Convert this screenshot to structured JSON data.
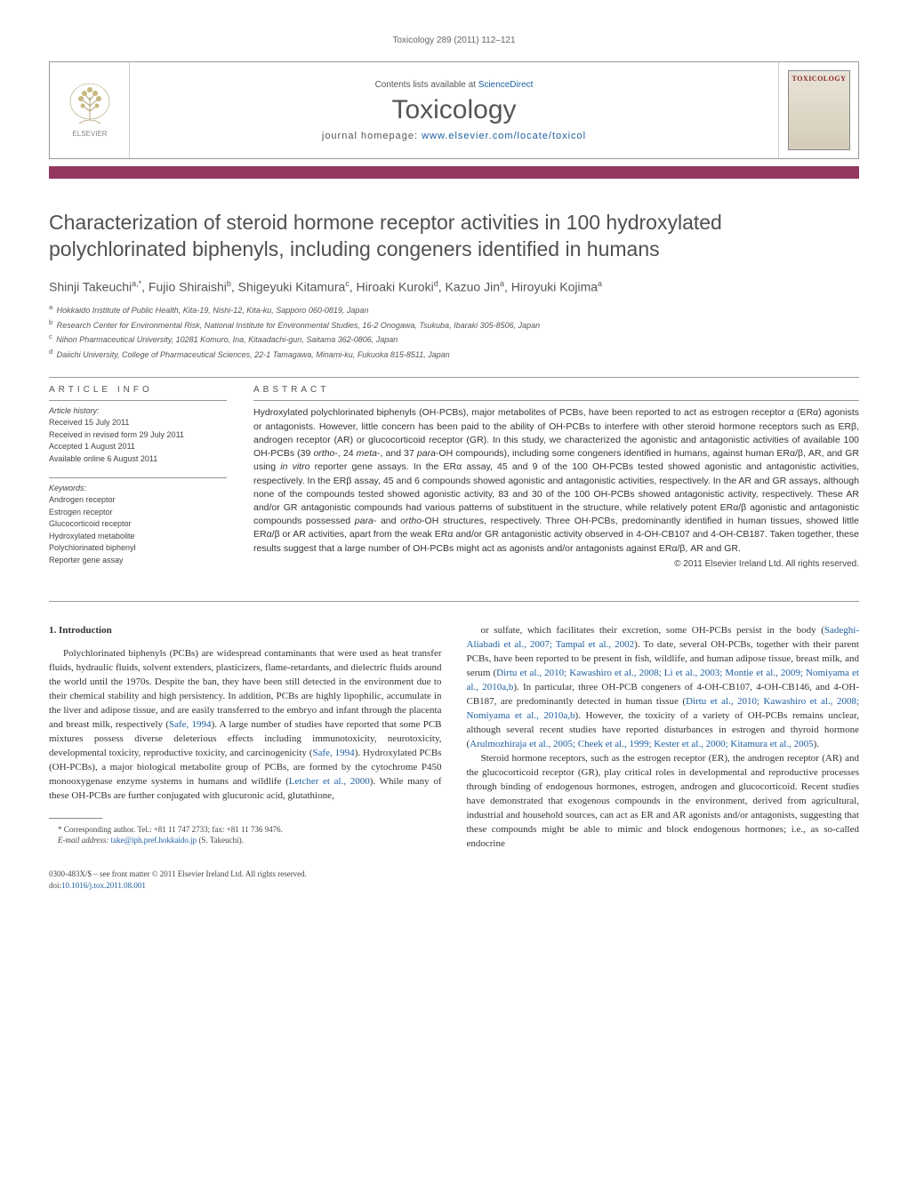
{
  "runningHeader": "Toxicology 289 (2011) 112–121",
  "masthead": {
    "contentsPrefix": "Contents lists available at ",
    "contentsLink": "ScienceDirect",
    "journalName": "Toxicology",
    "homepagePrefix": "journal homepage: ",
    "homepageLink": "www.elsevier.com/locate/toxicol",
    "coverTitle": "TOXICOLOGY",
    "publisherName": "ELSEVIER"
  },
  "colors": {
    "accentBar": "#93385f",
    "link": "#2060a0",
    "titleText": "#505050",
    "bodyText": "#333333",
    "metaText": "#555555",
    "border": "#999999",
    "coverAccent": "#8a2020"
  },
  "title": "Characterization of steroid hormone receptor activities in 100 hydroxylated polychlorinated biphenyls, including congeners identified in humans",
  "authorsHtml": "Shinji Takeuchi<sup>a,*</sup>, Fujio Shiraishi<sup>b</sup>, Shigeyuki Kitamura<sup>c</sup>, Hiroaki Kuroki<sup>d</sup>, Kazuo Jin<sup>a</sup>, Hiroyuki Kojima<sup>a</sup>",
  "affiliations": [
    {
      "sup": "a",
      "text": "Hokkaido Institute of Public Health, Kita-19, Nishi-12, Kita-ku, Sapporo 060-0819, Japan"
    },
    {
      "sup": "b",
      "text": "Research Center for Environmental Risk, National Institute for Environmental Studies, 16-2 Onogawa, Tsukuba, Ibaraki 305-8506, Japan"
    },
    {
      "sup": "c",
      "text": "Nihon Pharmaceutical University, 10281 Komuro, Ina, Kitaadachi-gun, Saitama 362-0806, Japan"
    },
    {
      "sup": "d",
      "text": "Daiichi University, College of Pharmaceutical Sciences, 22-1 Tamagawa, Minami-ku, Fukuoka 815-8511, Japan"
    }
  ],
  "articleInfo": {
    "label": "article info",
    "historyHeading": "Article history:",
    "history": [
      "Received 15 July 2011",
      "Received in revised form 29 July 2011",
      "Accepted 1 August 2011",
      "Available online 6 August 2011"
    ],
    "keywordsHeading": "Keywords:",
    "keywords": [
      "Androgen receptor",
      "Estrogen receptor",
      "Glucocorticoid receptor",
      "Hydroxylated metabolite",
      "Polychlorinated biphenyl",
      "Reporter gene assay"
    ]
  },
  "abstract": {
    "label": "abstract",
    "text": "Hydroxylated polychlorinated biphenyls (OH-PCBs), major metabolites of PCBs, have been reported to act as estrogen receptor α (ERα) agonists or antagonists. However, little concern has been paid to the ability of OH-PCBs to interfere with other steroid hormone receptors such as ERβ, androgen receptor (AR) or glucocorticoid receptor (GR). In this study, we characterized the agonistic and antagonistic activities of available 100 OH-PCBs (39 <em>ortho</em>-, 24 <em>meta</em>-, and 37 <em>para</em>-OH compounds), including some congeners identified in humans, against human ERα/β, AR, and GR using <em>in vitro</em> reporter gene assays. In the ERα assay, 45 and 9 of the 100 OH-PCBs tested showed agonistic and antagonistic activities, respectively. In the ERβ assay, 45 and 6 compounds showed agonistic and antagonistic activities, respectively. In the AR and GR assays, although none of the compounds tested showed agonistic activity, 83 and 30 of the 100 OH-PCBs showed antagonistic activity, respectively. These AR and/or GR antagonistic compounds had various patterns of substituent in the structure, while relatively potent ERα/β agonistic and antagonistic compounds possessed <em>para</em>- and <em>ortho</em>-OH structures, respectively. Three OH-PCBs, predominantly identified in human tissues, showed little ERα/β or AR activities, apart from the weak ERα and/or GR antagonistic activity observed in 4-OH-CB107 and 4-OH-CB187. Taken together, these results suggest that a large number of OH-PCBs might act as agonists and/or antagonists against ERα/β, AR and GR.",
    "copyright": "© 2011 Elsevier Ireland Ltd. All rights reserved."
  },
  "body": {
    "sectionNumber": "1.",
    "sectionTitle": "Introduction",
    "leftParagraph": "Polychlorinated biphenyls (PCBs) are widespread contaminants that were used as heat transfer fluids, hydraulic fluids, solvent extenders, plasticizers, flame-retardants, and dielectric fluids around the world until the 1970s. Despite the ban, they have been still detected in the environment due to their chemical stability and high persistency. In addition, PCBs are highly lipophilic, accumulate in the liver and adipose tissue, and are easily transferred to the embryo and infant through the placenta and breast milk, respectively (<a>Safe, 1994</a>). A large number of studies have reported that some PCB mixtures possess diverse deleterious effects including immunotoxicity, neurotoxicity, developmental toxicity, reproductive toxicity, and carcinogenicity (<a>Safe, 1994</a>). Hydroxylated PCBs (OH-PCBs), a major biological metabolite group of PCBs, are formed by the cytochrome P450 monooxygenase enzyme systems in humans and wildlife (<a>Letcher et al., 2000</a>). While many of these OH-PCBs are further conjugated with glucuronic acid, glutathione,",
    "rightParagraph1": "or sulfate, which facilitates their excretion, some OH-PCBs persist in the body (<a>Sadeghi-Aliabadi et al., 2007; Tampal et al., 2002</a>). To date, several OH-PCBs, together with their parent PCBs, have been reported to be present in fish, wildlife, and human adipose tissue, breast milk, and serum (<a>Dirtu et al., 2010; Kawashiro et al., 2008; Li et al., 2003; Montie et al., 2009; Nomiyama et al., 2010a,b</a>). In particular, three OH-PCB congeners of 4-OH-CB107, 4-OH-CB146, and 4-OH-CB187, are predominantly detected in human tissue (<a>Dirtu et al., 2010; Kawashiro et al., 2008; Nomiyama et al., 2010a,b</a>). However, the toxicity of a variety of OH-PCBs remains unclear, although several recent studies have reported disturbances in estrogen and thyroid hormone (<a>Arulmozhiraja et al., 2005; Cheek et al., 1999; Kester et al., 2000; Kitamura et al., 2005</a>).",
    "rightParagraph2": "Steroid hormone receptors, such as the estrogen receptor (ER), the androgen receptor (AR) and the glucocorticoid receptor (GR), play critical roles in developmental and reproductive processes through binding of endogenous hormones, estrogen, androgen and glucocorticoid. Recent studies have demonstrated that exogenous compounds in the environment, derived from agricultural, industrial and household sources, can act as ER and AR agonists and/or antagonists, suggesting that these compounds might be able to mimic and block endogenous hormones; i.e., as so-called endocrine"
  },
  "correspondingNote": {
    "line1": "* Corresponding author. Tel.: +81 11 747 2733; fax: +81 11 736 9476.",
    "line2Prefix": "E-mail address: ",
    "email": "take@iph.pref.hokkaido.jp",
    "line2Suffix": " (S. Takeuchi)."
  },
  "footer": {
    "line1": "0300-483X/$ – see front matter © 2011 Elsevier Ireland Ltd. All rights reserved.",
    "doiPrefix": "doi:",
    "doi": "10.1016/j.tox.2011.08.001"
  },
  "layout": {
    "pageWidthPx": 1021,
    "pageHeightPx": 1351,
    "pagePaddingPx": [
      40,
      55,
      40,
      55
    ],
    "mastheadHeightPx": 110,
    "accentBarHeightPx": 14,
    "infoColWidthPx": 200,
    "bodyColGapPx": 28,
    "fonts": {
      "title": {
        "family": "Arial",
        "sizePx": 23,
        "weight": "normal"
      },
      "authors": {
        "family": "Arial",
        "sizePx": 14
      },
      "affiliations": {
        "family": "Arial",
        "sizePx": 9,
        "style": "italic"
      },
      "abstract": {
        "family": "Arial",
        "sizePx": 10.5
      },
      "body": {
        "family": "Georgia",
        "sizePx": 11
      },
      "sectionLabel": {
        "family": "Arial",
        "sizePx": 10,
        "letterSpacingPx": 4
      }
    }
  }
}
